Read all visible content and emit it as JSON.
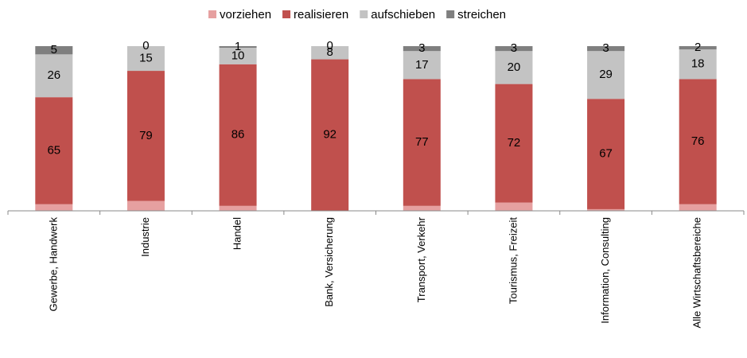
{
  "chart_data": {
    "type": "stacked_bar",
    "categories": [
      "Gewerbe, Handwerk",
      "Industrie",
      "Handel",
      "Bank, Versicherung",
      "Transport, Verkehr",
      "Tourismus, Freizeit",
      "Information, Consulting",
      "Alle Wirtschaftsbereiche"
    ],
    "series": [
      {
        "name": "vorziehen",
        "color": "#e6a0a0",
        "values": [
          4,
          6,
          3,
          0,
          3,
          5,
          1,
          4
        ],
        "show_labels": false
      },
      {
        "name": "realisieren",
        "color": "#c0504d",
        "values": [
          65,
          79,
          86,
          92,
          77,
          72,
          67,
          76
        ],
        "show_labels": true
      },
      {
        "name": "aufschieben",
        "color": "#c3c3c3",
        "values": [
          26,
          15,
          10,
          8,
          17,
          20,
          29,
          18
        ],
        "show_labels": true
      },
      {
        "name": "streichen",
        "color": "#7f7f7f",
        "values": [
          5,
          0,
          1,
          0,
          3,
          3,
          3,
          2
        ],
        "show_labels": true
      }
    ],
    "ylim": [
      0,
      100
    ],
    "legend": "top"
  }
}
